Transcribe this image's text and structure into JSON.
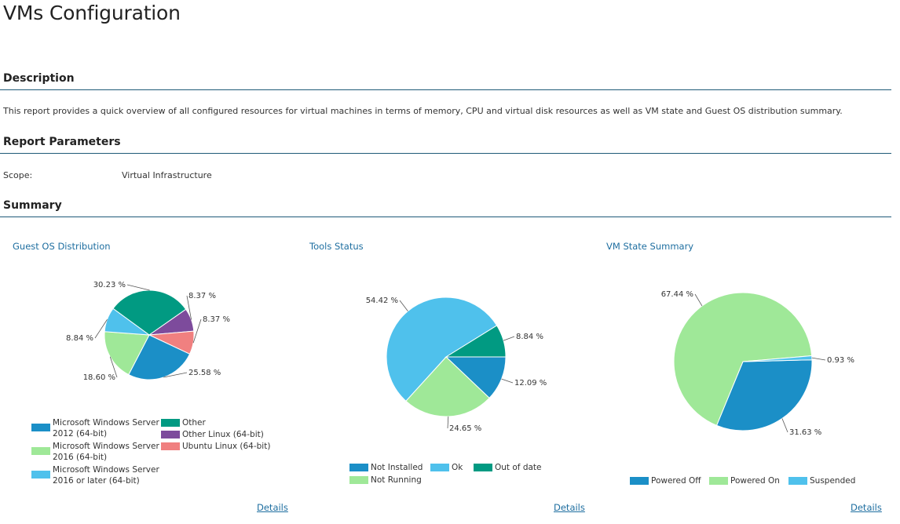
{
  "page": {
    "title": "VMs Configuration"
  },
  "description": {
    "heading": "Description",
    "text": "This report provides a quick overview of all configured resources for virtual machines in terms of memory, CPU and virtual disk resources as well as VM state and Guest OS distribution summary."
  },
  "parameters": {
    "heading": "Report Parameters",
    "scope_label": "Scope:",
    "scope_value": "Virtual Infrastructure"
  },
  "summary": {
    "heading": "Summary"
  },
  "chart_data": [
    {
      "type": "pie",
      "title": "Guest OS Distribution",
      "details_label": "Details",
      "slices": [
        {
          "label": "Microsoft Windows Server 2012 (64-bit)",
          "label_lines": [
            "Microsoft Windows Server",
            "2012 (64-bit)"
          ],
          "value": 25.58,
          "value_label": "25.58 %",
          "color": "#1b8fc7"
        },
        {
          "label": "Microsoft Windows Server 2016 (64-bit)",
          "label_lines": [
            "Microsoft Windows Server",
            "2016 (64-bit)"
          ],
          "value": 18.6,
          "value_label": "18.60 %",
          "color": "#9fe898"
        },
        {
          "label": "Microsoft Windows Server 2016 or later (64-bit)",
          "label_lines": [
            "Microsoft Windows Server",
            "2016 or later (64-bit)"
          ],
          "value": 8.84,
          "value_label": "8.84 %",
          "color": "#4fc1ec"
        },
        {
          "label": "Other",
          "label_lines": [
            "Other"
          ],
          "value": 30.23,
          "value_label": "30.23 %",
          "color": "#019a82"
        },
        {
          "label": "Other Linux (64-bit)",
          "label_lines": [
            "Other Linux (64-bit)"
          ],
          "value": 8.37,
          "value_label": "8.37 %",
          "color": "#7d4b9c"
        },
        {
          "label": "Ubuntu Linux (64-bit)",
          "label_lines": [
            "Ubuntu Linux (64-bit)"
          ],
          "value": 8.37,
          "value_label": "8.37 %",
          "color": "#f08080"
        }
      ]
    },
    {
      "type": "pie",
      "title": "Tools Status",
      "details_label": "Details",
      "slices": [
        {
          "label": "Not Installed",
          "label_lines": [
            "Not Installed"
          ],
          "value": 12.09,
          "value_label": "12.09 %",
          "color": "#1b8fc7"
        },
        {
          "label": "Not Running",
          "label_lines": [
            "Not Running"
          ],
          "value": 24.65,
          "value_label": "24.65 %",
          "color": "#9fe898"
        },
        {
          "label": "Ok",
          "label_lines": [
            "Ok"
          ],
          "value": 54.42,
          "value_label": "54.42 %",
          "color": "#4fc1ec"
        },
        {
          "label": "Out of date",
          "label_lines": [
            "Out of date"
          ],
          "value": 8.84,
          "value_label": "8.84 %",
          "color": "#019a82"
        }
      ]
    },
    {
      "type": "pie",
      "title": "VM State Summary",
      "details_label": "Details",
      "slices": [
        {
          "label": "Powered Off",
          "label_lines": [
            "Powered Off"
          ],
          "value": 31.63,
          "value_label": "31.63 %",
          "color": "#1b8fc7"
        },
        {
          "label": "Powered On",
          "label_lines": [
            "Powered On"
          ],
          "value": 67.44,
          "value_label": "67.44 %",
          "color": "#9fe898"
        },
        {
          "label": "Suspended",
          "label_lines": [
            "Suspended"
          ],
          "value": 0.93,
          "value_label": "0.93 %",
          "color": "#4fc1ec"
        }
      ]
    }
  ]
}
